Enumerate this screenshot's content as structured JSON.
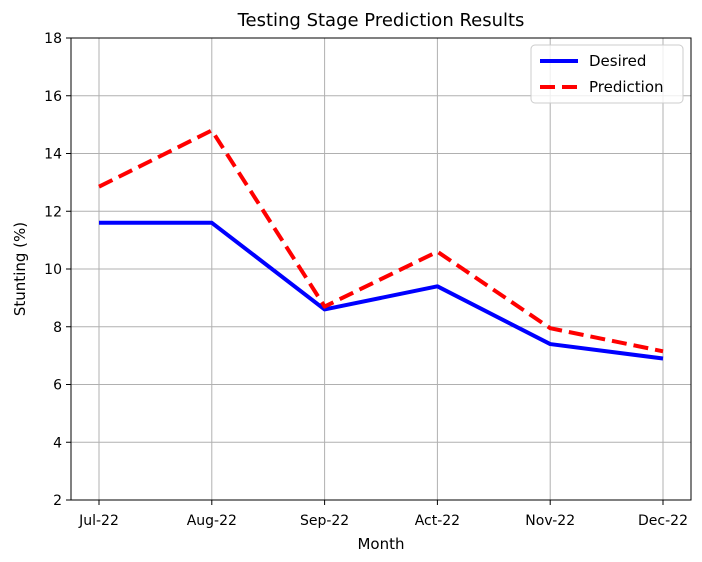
{
  "chart_data": {
    "type": "line",
    "title": "Testing Stage Prediction Results",
    "xlabel": "Month",
    "ylabel": "Stunting (%)",
    "categories": [
      "Jul-22",
      "Aug-22",
      "Sep-22",
      "Act-22",
      "Nov-22",
      "Dec-22"
    ],
    "ylim": [
      2,
      18
    ],
    "yticks": [
      "2",
      "4",
      "6",
      "8",
      "10",
      "12",
      "14",
      "16",
      "18"
    ],
    "grid": true,
    "legend_position": "top-right",
    "series": [
      {
        "name": "Desired",
        "color": "#0000ff",
        "style": "solid",
        "values": [
          11.6,
          11.6,
          8.6,
          9.4,
          7.4,
          6.9
        ]
      },
      {
        "name": "Prediction",
        "color": "#ff0000",
        "style": "dashed",
        "values": [
          12.85,
          14.8,
          8.7,
          10.6,
          7.95,
          7.15
        ]
      }
    ]
  }
}
